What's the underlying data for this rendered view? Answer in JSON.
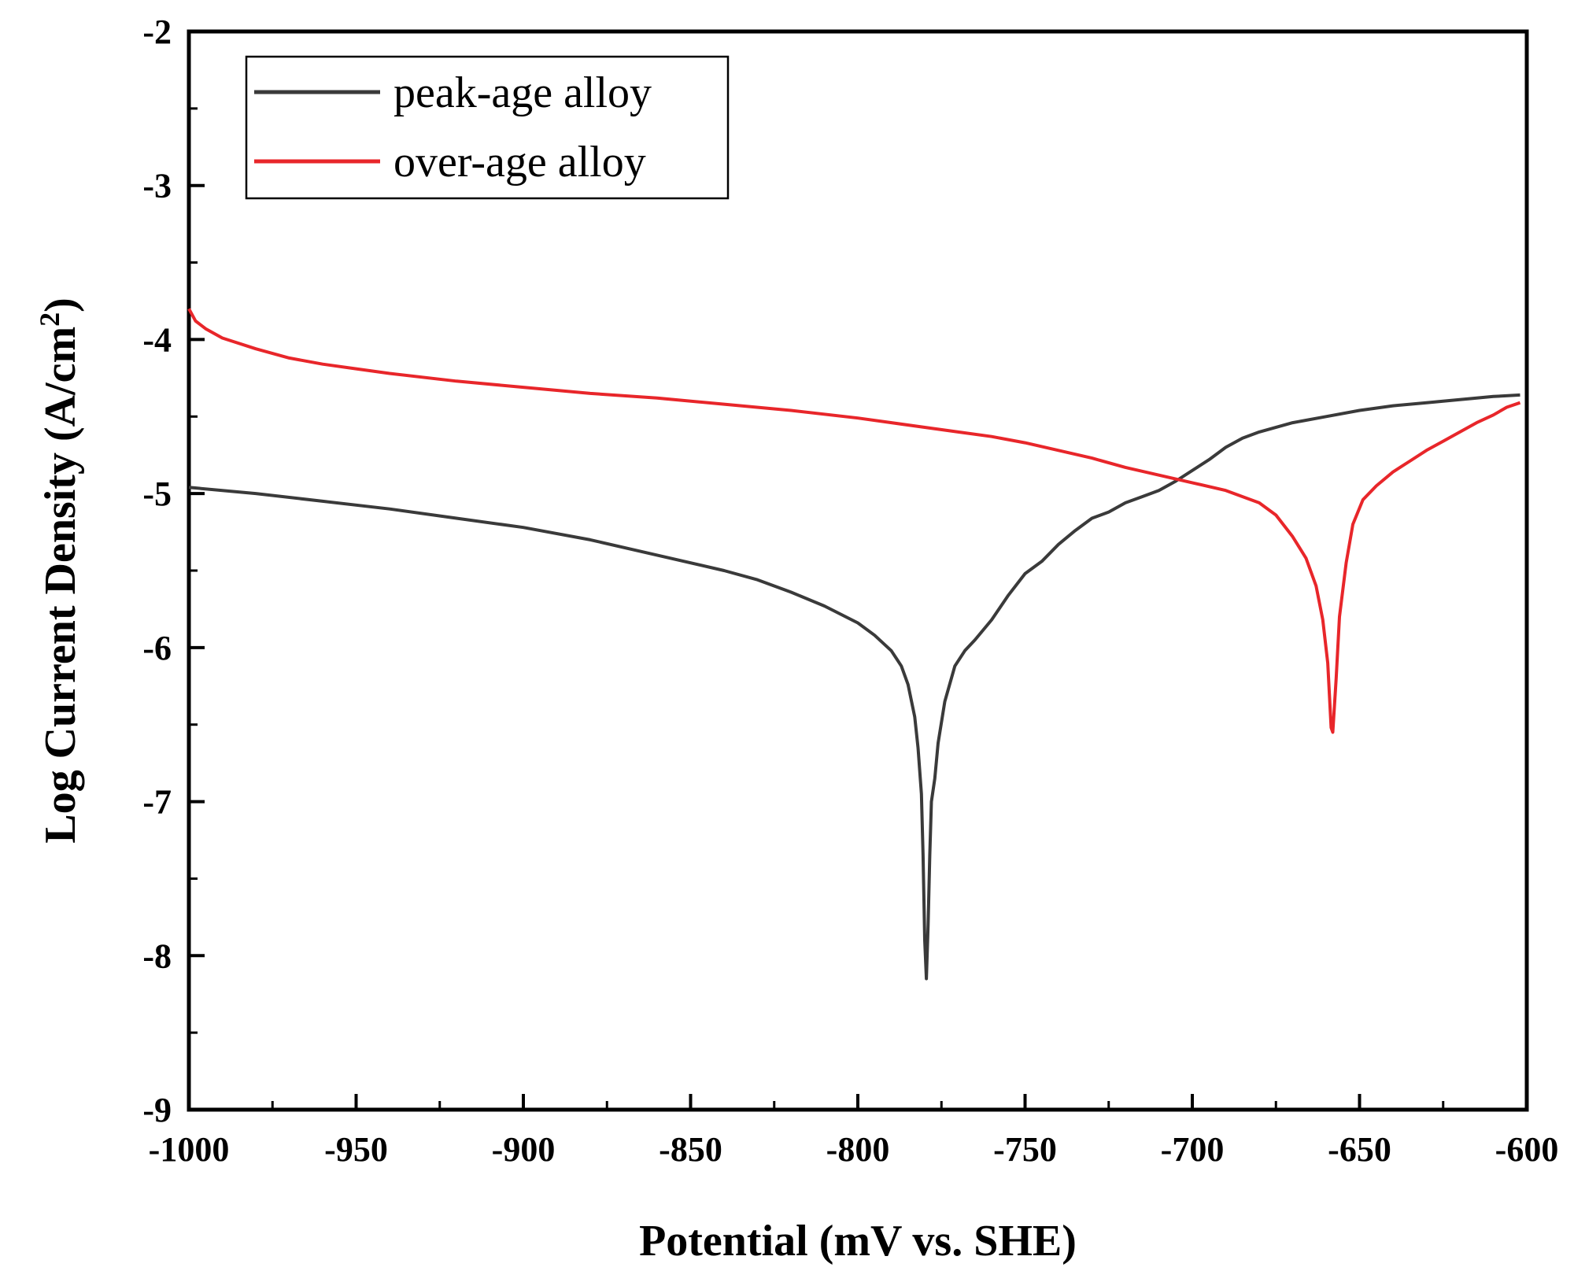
{
  "chart_data": {
    "type": "line",
    "title": "",
    "xlabel": "Potential (mV vs. SHE)",
    "ylabel": "Log Current Density (A/cm",
    "ylabel_superscript": "2",
    "ylabel_close": ")",
    "xlim": [
      -1000,
      -600
    ],
    "ylim": [
      -9,
      -2
    ],
    "xticks": [
      -1000,
      -950,
      -900,
      -850,
      -800,
      -750,
      -700,
      -650,
      -600
    ],
    "yticks": [
      -9,
      -8,
      -7,
      -6,
      -5,
      -4,
      -3,
      -2
    ],
    "grid": false,
    "legend_position": "top-left",
    "series": [
      {
        "name": "peak-age alloy",
        "color": "#3a3a3a",
        "points": [
          [
            -1000,
            -4.96
          ],
          [
            -980,
            -5.0
          ],
          [
            -960,
            -5.05
          ],
          [
            -940,
            -5.1
          ],
          [
            -920,
            -5.16
          ],
          [
            -900,
            -5.22
          ],
          [
            -880,
            -5.3
          ],
          [
            -860,
            -5.4
          ],
          [
            -840,
            -5.5
          ],
          [
            -830,
            -5.56
          ],
          [
            -820,
            -5.64
          ],
          [
            -810,
            -5.73
          ],
          [
            -800,
            -5.84
          ],
          [
            -795,
            -5.92
          ],
          [
            -790,
            -6.02
          ],
          [
            -787,
            -6.12
          ],
          [
            -785,
            -6.24
          ],
          [
            -783,
            -6.45
          ],
          [
            -782,
            -6.65
          ],
          [
            -781,
            -6.95
          ],
          [
            -780.5,
            -7.35
          ],
          [
            -780,
            -7.9
          ],
          [
            -779.5,
            -8.15
          ],
          [
            -779,
            -7.8
          ],
          [
            -778.5,
            -7.35
          ],
          [
            -778,
            -7.0
          ],
          [
            -777,
            -6.85
          ],
          [
            -776,
            -6.62
          ],
          [
            -774,
            -6.35
          ],
          [
            -771,
            -6.12
          ],
          [
            -768,
            -6.02
          ],
          [
            -765,
            -5.95
          ],
          [
            -760,
            -5.82
          ],
          [
            -755,
            -5.66
          ],
          [
            -750,
            -5.52
          ],
          [
            -745,
            -5.44
          ],
          [
            -740,
            -5.33
          ],
          [
            -735,
            -5.24
          ],
          [
            -730,
            -5.16
          ],
          [
            -725,
            -5.12
          ],
          [
            -720,
            -5.06
          ],
          [
            -715,
            -5.02
          ],
          [
            -710,
            -4.98
          ],
          [
            -705,
            -4.92
          ],
          [
            -700,
            -4.85
          ],
          [
            -695,
            -4.78
          ],
          [
            -690,
            -4.7
          ],
          [
            -685,
            -4.64
          ],
          [
            -680,
            -4.6
          ],
          [
            -670,
            -4.54
          ],
          [
            -660,
            -4.5
          ],
          [
            -650,
            -4.46
          ],
          [
            -640,
            -4.43
          ],
          [
            -630,
            -4.41
          ],
          [
            -620,
            -4.39
          ],
          [
            -610,
            -4.37
          ],
          [
            -602,
            -4.36
          ]
        ]
      },
      {
        "name": "over-age alloy",
        "color": "#e8262a",
        "points": [
          [
            -1000,
            -3.8
          ],
          [
            -998,
            -3.88
          ],
          [
            -995,
            -3.93
          ],
          [
            -990,
            -3.99
          ],
          [
            -980,
            -4.06
          ],
          [
            -970,
            -4.12
          ],
          [
            -960,
            -4.16
          ],
          [
            -950,
            -4.19
          ],
          [
            -940,
            -4.22
          ],
          [
            -920,
            -4.27
          ],
          [
            -900,
            -4.31
          ],
          [
            -880,
            -4.35
          ],
          [
            -860,
            -4.38
          ],
          [
            -840,
            -4.42
          ],
          [
            -820,
            -4.46
          ],
          [
            -800,
            -4.51
          ],
          [
            -780,
            -4.57
          ],
          [
            -770,
            -4.6
          ],
          [
            -760,
            -4.63
          ],
          [
            -750,
            -4.67
          ],
          [
            -740,
            -4.72
          ],
          [
            -730,
            -4.77
          ],
          [
            -720,
            -4.83
          ],
          [
            -710,
            -4.88
          ],
          [
            -700,
            -4.93
          ],
          [
            -690,
            -4.98
          ],
          [
            -680,
            -5.06
          ],
          [
            -675,
            -5.14
          ],
          [
            -670,
            -5.28
          ],
          [
            -666,
            -5.42
          ],
          [
            -663,
            -5.6
          ],
          [
            -661,
            -5.82
          ],
          [
            -659.5,
            -6.1
          ],
          [
            -658.5,
            -6.52
          ],
          [
            -658,
            -6.55
          ],
          [
            -657,
            -6.2
          ],
          [
            -656,
            -5.8
          ],
          [
            -654,
            -5.45
          ],
          [
            -652,
            -5.2
          ],
          [
            -649,
            -5.04
          ],
          [
            -645,
            -4.95
          ],
          [
            -640,
            -4.86
          ],
          [
            -635,
            -4.79
          ],
          [
            -630,
            -4.72
          ],
          [
            -625,
            -4.66
          ],
          [
            -620,
            -4.6
          ],
          [
            -615,
            -4.54
          ],
          [
            -610,
            -4.49
          ],
          [
            -606,
            -4.44
          ],
          [
            -602,
            -4.41
          ]
        ]
      }
    ]
  }
}
